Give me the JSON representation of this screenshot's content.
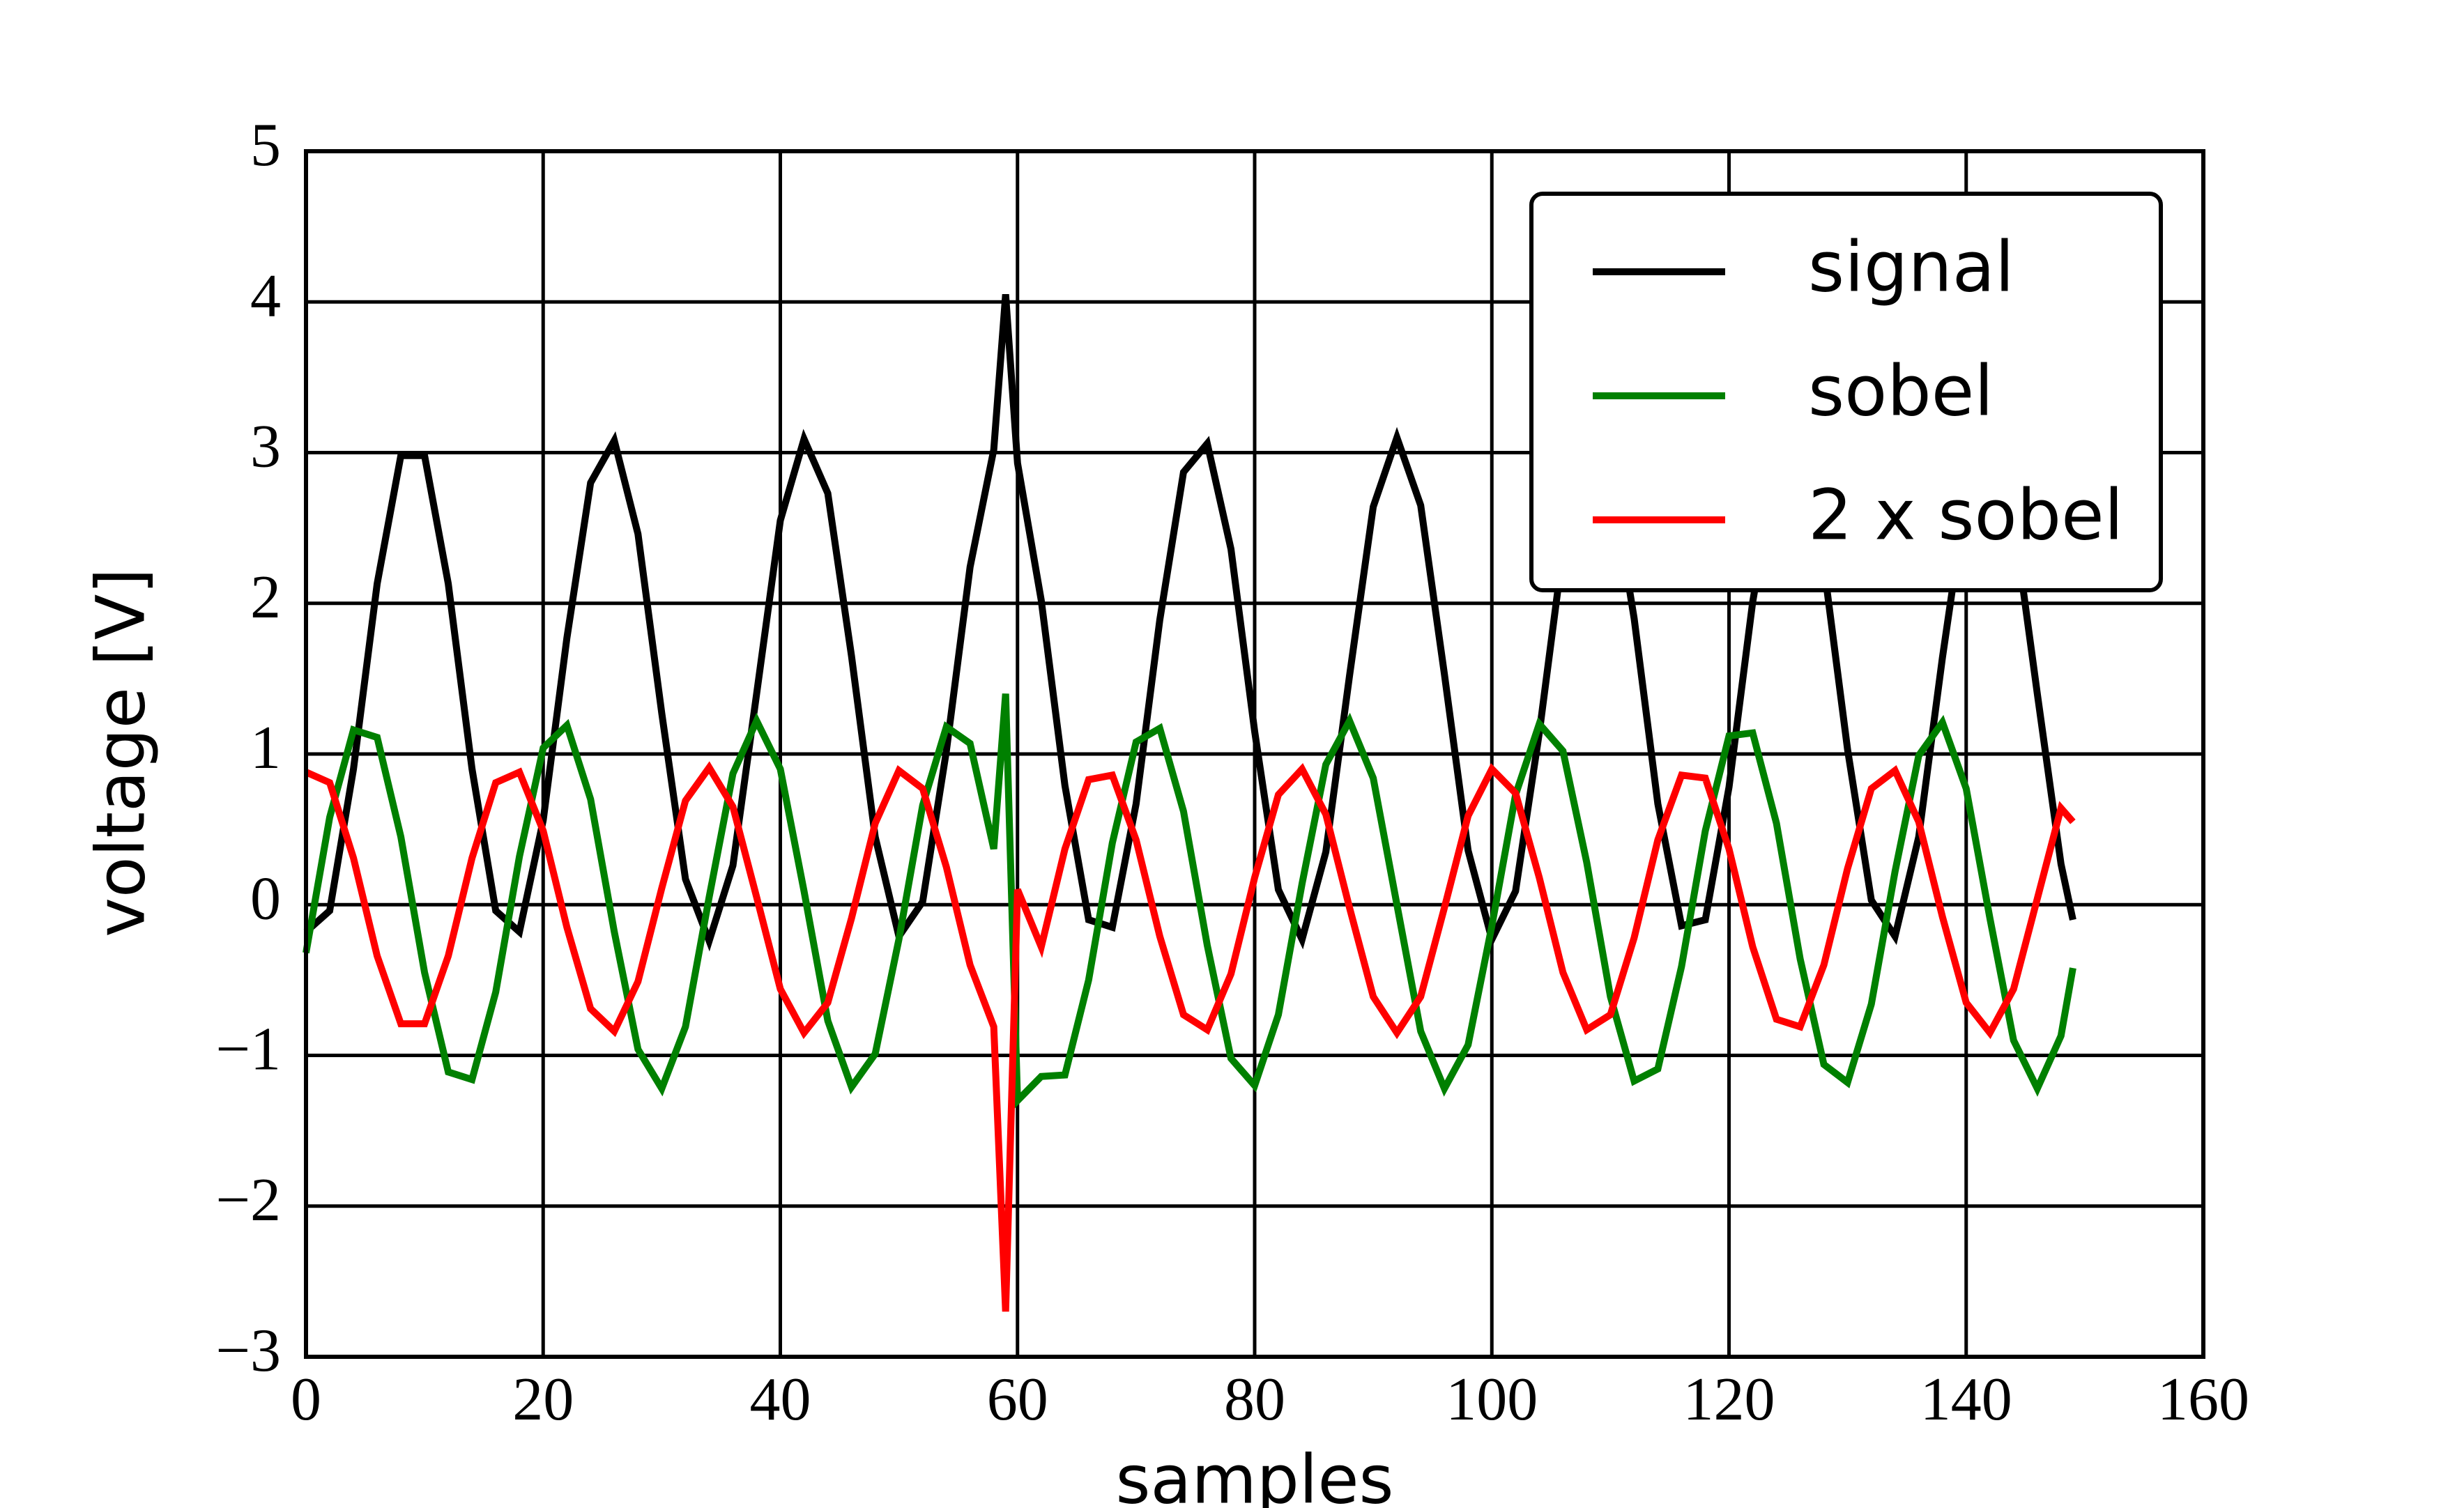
{
  "chart_data": {
    "type": "line",
    "xlabel": "samples",
    "ylabel": "voltage [V]",
    "x": [
      0,
      2,
      4,
      6,
      8,
      10,
      12,
      14,
      16,
      18,
      20,
      22,
      24,
      26,
      28,
      30,
      32,
      34,
      36,
      38,
      40,
      42,
      44,
      46,
      48,
      50,
      52,
      54,
      56,
      58,
      59,
      60,
      62,
      64,
      66,
      68,
      70,
      72,
      74,
      76,
      78,
      80,
      82,
      84,
      86,
      88,
      90,
      92,
      94,
      96,
      98,
      100,
      102,
      104,
      106,
      108,
      110,
      112,
      114,
      116,
      118,
      120,
      122,
      124,
      126,
      128,
      130,
      132,
      134,
      136,
      138,
      140,
      142,
      144,
      146,
      148,
      149
    ],
    "series": [
      {
        "name": "signal",
        "color": "#000000",
        "values": [
          -0.18,
          -0.04,
          0.9,
          2.13,
          2.98,
          2.98,
          2.13,
          0.9,
          -0.04,
          -0.18,
          0.56,
          1.77,
          2.8,
          3.08,
          2.46,
          1.27,
          0.17,
          -0.24,
          0.26,
          1.4,
          2.55,
          3.09,
          2.73,
          1.65,
          0.45,
          -0.21,
          0.02,
          1.02,
          2.24,
          3.02,
          4.05,
          2.93,
          2.02,
          0.79,
          -0.1,
          -0.15,
          0.67,
          1.89,
          2.87,
          3.06,
          2.36,
          1.15,
          0.1,
          -0.23,
          0.35,
          1.52,
          2.64,
          3.1,
          2.65,
          1.53,
          0.36,
          -0.23,
          0.09,
          1.14,
          2.35,
          3.06,
          2.87,
          1.9,
          0.67,
          -0.14,
          -0.1,
          0.78,
          2.01,
          2.93,
          3.03,
          2.25,
          1.03,
          0.03,
          -0.21,
          0.45,
          1.64,
          2.72,
          3.09,
          2.56,
          1.4,
          0.27,
          -0.1
        ]
      },
      {
        "name": "sobel",
        "color": "#008000",
        "values": [
          -0.32,
          0.58,
          1.16,
          1.11,
          0.45,
          -0.45,
          -1.11,
          -1.16,
          -0.58,
          0.32,
          1.04,
          1.19,
          0.7,
          -0.18,
          -0.96,
          -1.22,
          -0.81,
          0.05,
          0.87,
          1.22,
          0.9,
          0.09,
          -0.77,
          -1.21,
          -0.99,
          -0.23,
          0.66,
          1.18,
          1.07,
          0.37,
          1.4,
          -1.3,
          -1.14,
          -1.13,
          -0.5,
          0.41,
          1.08,
          1.17,
          0.62,
          -0.27,
          -1.02,
          -1.2,
          -0.73,
          0.14,
          0.93,
          1.22,
          0.84,
          0.0,
          -0.84,
          -1.22,
          -0.93,
          -0.14,
          0.73,
          1.2,
          1.02,
          0.28,
          -0.61,
          -1.17,
          -1.09,
          -0.41,
          0.49,
          1.12,
          1.14,
          0.54,
          -0.36,
          -1.06,
          -1.18,
          -0.66,
          0.22,
          0.99,
          1.21,
          0.77,
          -0.09,
          -0.9,
          -1.22,
          -0.87,
          -0.42
        ]
      },
      {
        "name": "2 x sobel",
        "color": "#ff0000",
        "values": [
          0.88,
          0.81,
          0.31,
          -0.34,
          -0.79,
          -0.79,
          -0.34,
          0.31,
          0.81,
          0.88,
          0.49,
          -0.15,
          -0.69,
          -0.84,
          -0.51,
          0.11,
          0.69,
          0.91,
          0.65,
          0.05,
          -0.56,
          -0.85,
          -0.65,
          -0.09,
          0.54,
          0.89,
          0.77,
          0.25,
          -0.4,
          -0.81,
          -2.7,
          0.1,
          -0.28,
          0.37,
          0.83,
          0.86,
          0.43,
          -0.21,
          -0.73,
          -0.83,
          -0.46,
          0.18,
          0.73,
          0.9,
          0.6,
          -0.02,
          -0.61,
          -0.85,
          -0.61,
          -0.02,
          0.59,
          0.9,
          0.74,
          0.18,
          -0.45,
          -0.83,
          -0.73,
          -0.22,
          0.43,
          0.86,
          0.84,
          0.37,
          -0.28,
          -0.76,
          -0.81,
          -0.4,
          0.24,
          0.77,
          0.89,
          0.55,
          -0.08,
          -0.65,
          -0.85,
          -0.56,
          0.04,
          0.64,
          0.55
        ]
      }
    ],
    "xlim": [
      0,
      160
    ],
    "xticks": [
      0,
      20,
      40,
      60,
      80,
      100,
      120,
      140,
      160
    ],
    "ylim": [
      -3,
      5
    ],
    "yticks": [
      {
        "value": -3,
        "label": "−3"
      },
      {
        "value": -2,
        "label": "−2"
      },
      {
        "value": -1,
        "label": "−1"
      },
      0,
      1,
      2,
      3,
      4,
      5
    ],
    "grid": true,
    "legend": "upper right"
  }
}
